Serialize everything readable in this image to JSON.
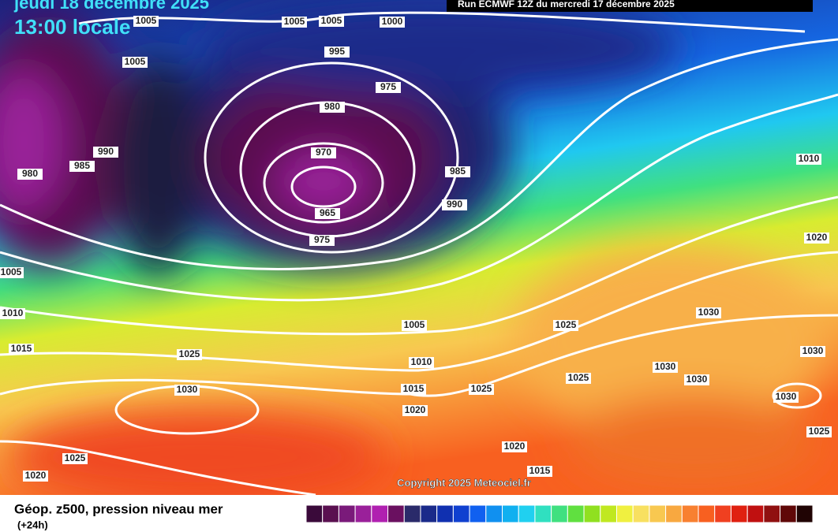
{
  "header": {
    "date": "jeudi 18 décembre 2025",
    "time": "13:00 locale",
    "run": "Run ECMWF 12Z du mercredi 17 décembre 2025"
  },
  "isobar_labels": [
    "1005",
    "1005",
    "1005",
    "1000",
    "995",
    "1005",
    "975",
    "980",
    "990",
    "985",
    "980",
    "970",
    "985",
    "965",
    "990",
    "975",
    "1010",
    "1020",
    "1005",
    "1010",
    "1005",
    "1025",
    "1030",
    "1015",
    "1025",
    "1030",
    "1010",
    "1030",
    "1025",
    "1030",
    "1030",
    "1015",
    "1025",
    "1030",
    "1020",
    "1025",
    "1020",
    "1025",
    "1015",
    "1020"
  ],
  "copyright": "Copyright 2025 Meteociel.fr",
  "legend": {
    "title": "Géop. z500, pression niveau mer",
    "subtitle": "(+24h)",
    "colors": [
      "#3a0a3a",
      "#5a1050",
      "#7a1a7a",
      "#9a209a",
      "#b020b0",
      "#6a1060",
      "#2a2a6a",
      "#1a2a8a",
      "#1030b0",
      "#1040d0",
      "#1060f0",
      "#1090f0",
      "#10b0f0",
      "#20d0f0",
      "#30e0c0",
      "#40e080",
      "#60e040",
      "#90e020",
      "#c0e820",
      "#f0f040",
      "#f8e060",
      "#f8c850",
      "#f8a840",
      "#f88030",
      "#f86020",
      "#f04020",
      "#e02010",
      "#c01010",
      "#901010",
      "#600808",
      "#200404"
    ]
  }
}
